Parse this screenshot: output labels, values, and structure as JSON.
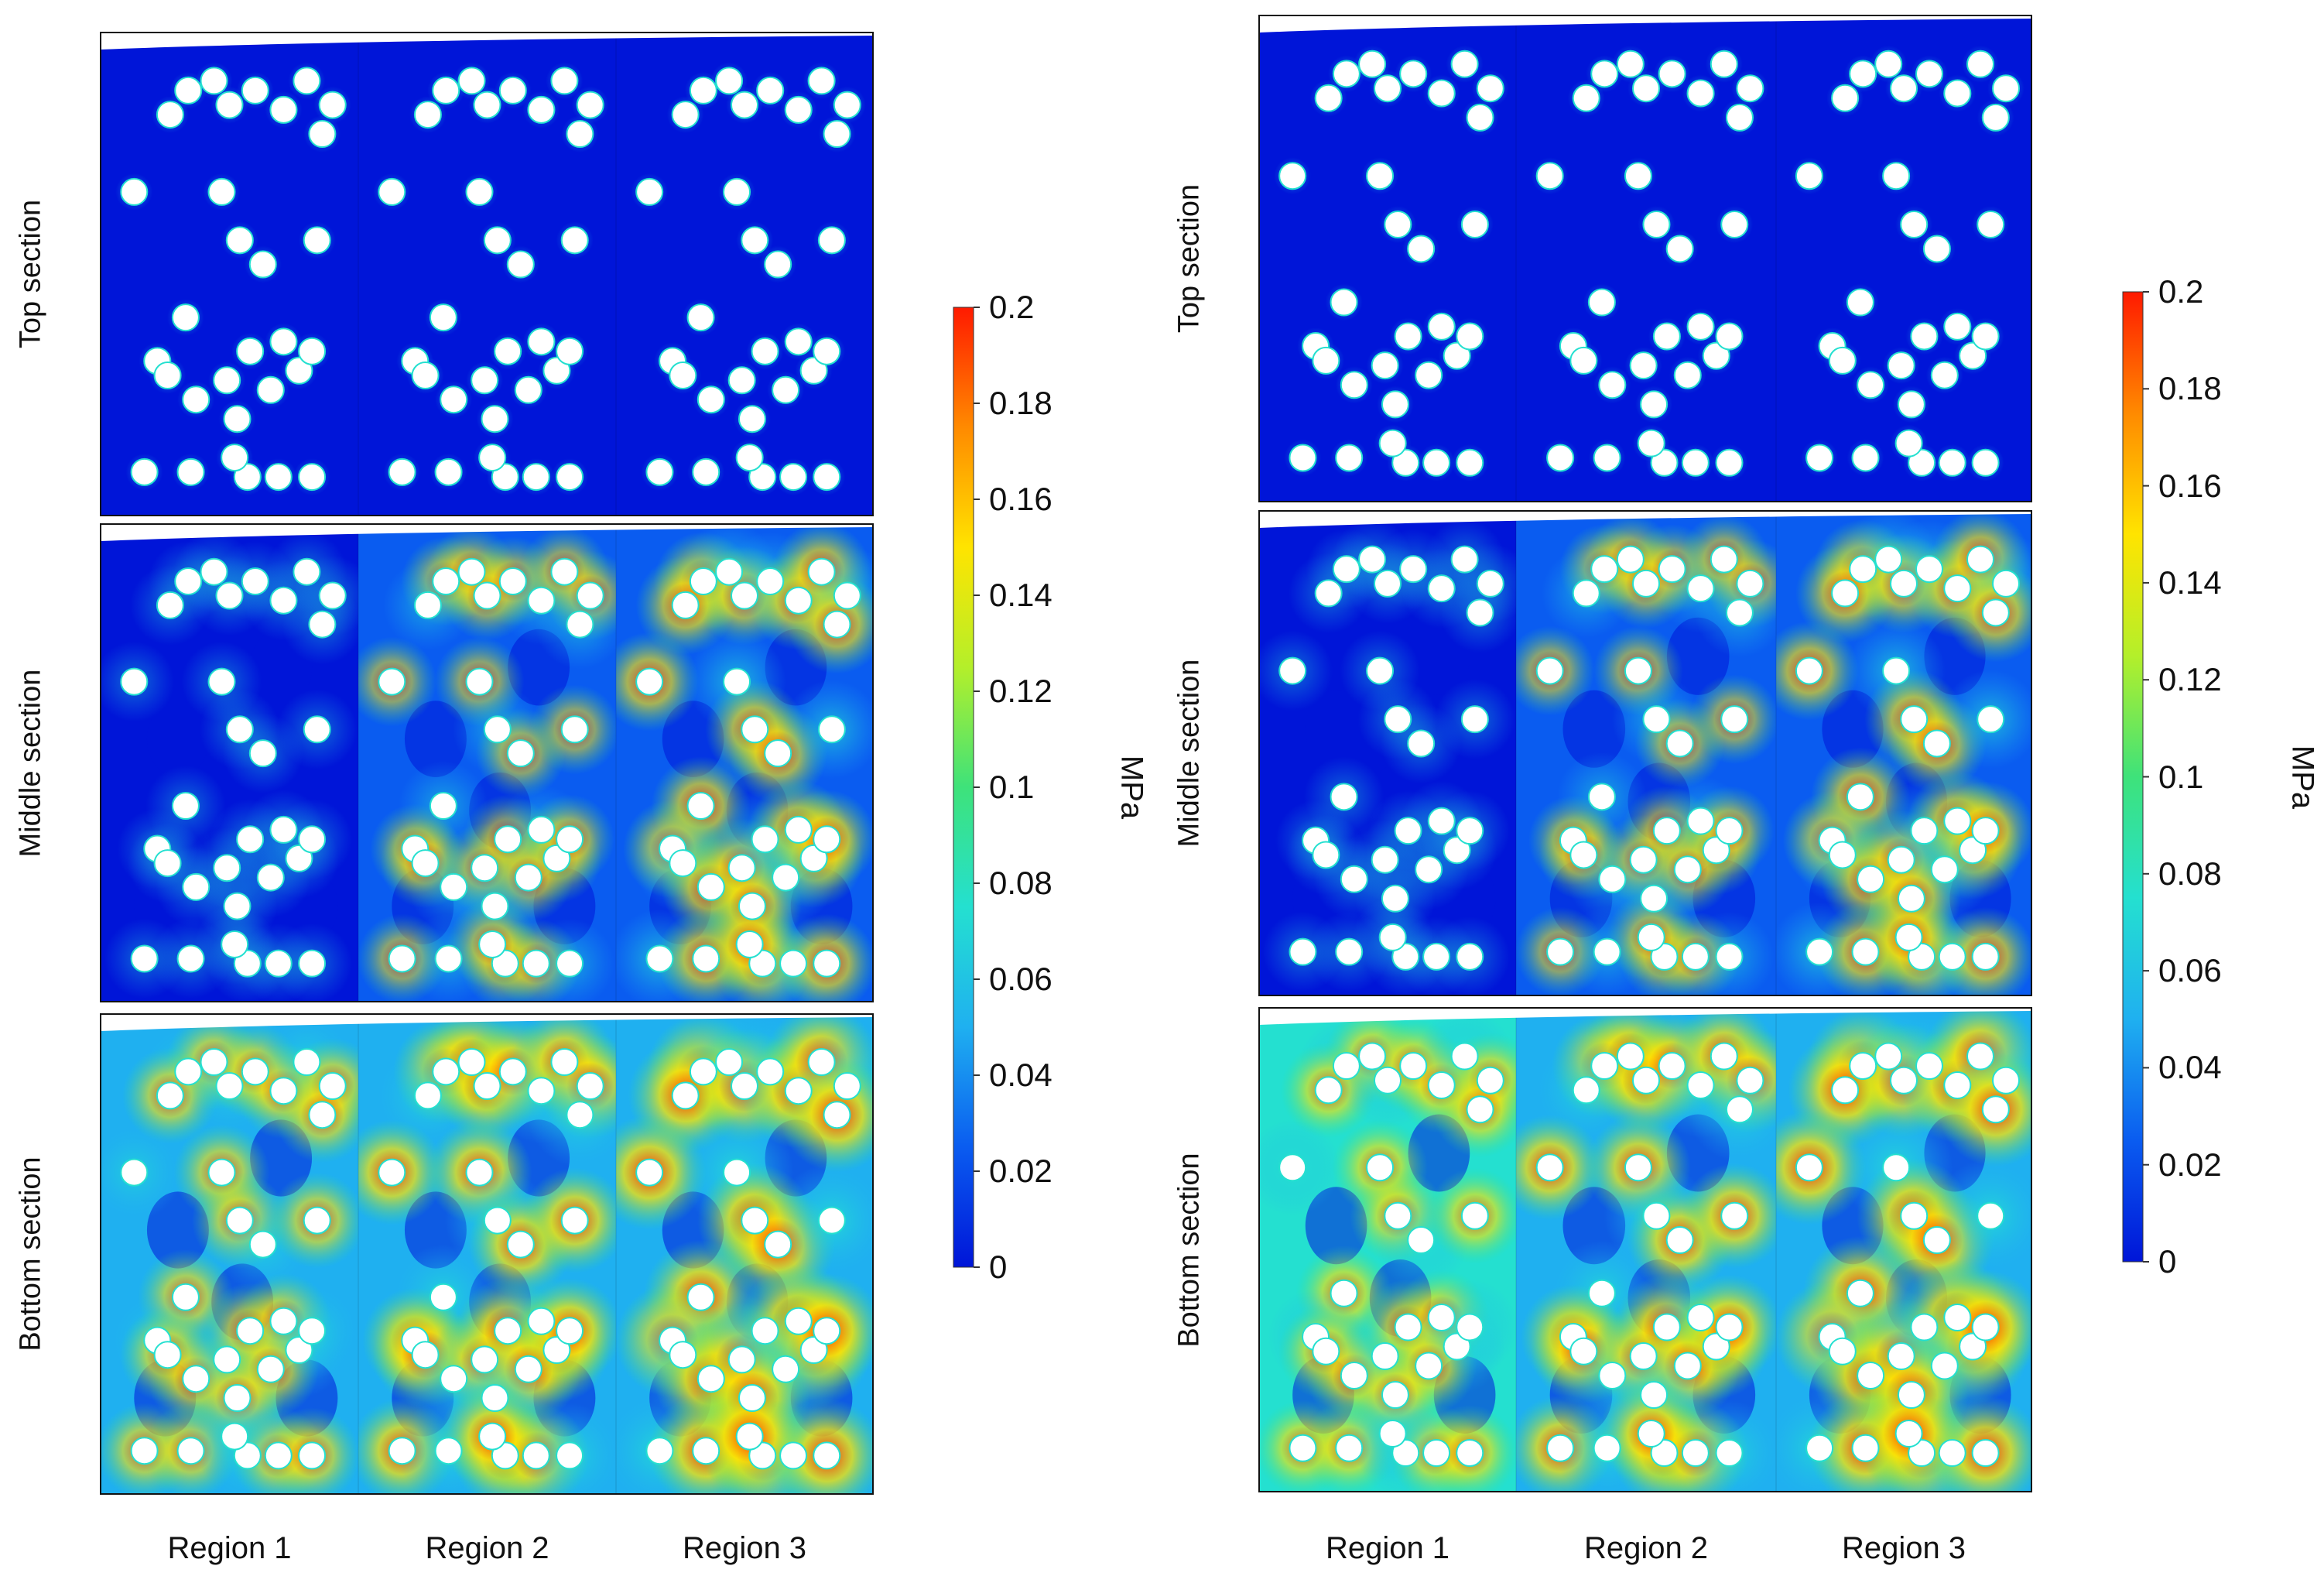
{
  "figure": {
    "colormap_colors": [
      "#0015d8",
      "#0a5cf0",
      "#1fb0f0",
      "#24e0d0",
      "#3ee27a",
      "#b4ef2a",
      "#ffe400",
      "#ff8a00",
      "#ff1a00"
    ],
    "sections": [
      "Top section",
      "Middle section",
      "Bottom section"
    ],
    "regions": [
      "Region 1",
      "Region 2",
      "Region 3"
    ],
    "colorbar": {
      "unit": "MPa",
      "ticks": [
        "0.2",
        "0.18",
        "0.16",
        "0.14",
        "0.12",
        "0.1",
        "0.08",
        "0.06",
        "0.04",
        "0.02",
        "0"
      ],
      "min": 0,
      "max": 0.2
    },
    "panels": [
      {
        "name": "left"
      },
      {
        "name": "right"
      }
    ]
  }
}
